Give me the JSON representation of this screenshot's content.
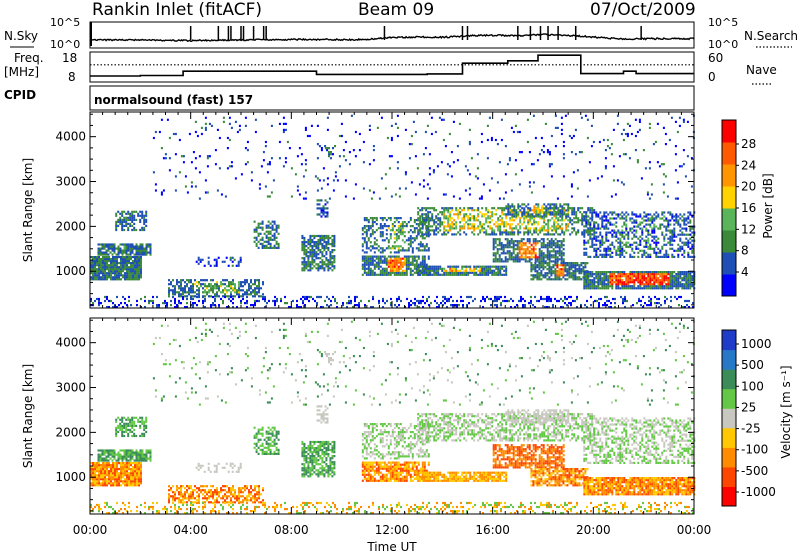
{
  "header": {
    "station": "Rankin Inlet (fitACF)",
    "beam": "Beam 09",
    "date": "07/Oct/2009"
  },
  "strip_labels": {
    "nsky": "N.Sky",
    "nsearch": "N.Search",
    "freq": "Freq.",
    "freq_unit": "[MHz]",
    "cpid": "CPID",
    "nave": "Nave",
    "cpid_value": "normalsound (fast) 157"
  },
  "colors": {
    "power_scale": [
      "#0000ff",
      "#1e4fb4",
      "#3a8a3a",
      "#5ab45a",
      "#ffd200",
      "#ff9600",
      "#ff5a00",
      "#ff0000"
    ],
    "velocity_scale": [
      "#1e3cc8",
      "#2878c8",
      "#3c8c5a",
      "#64c846",
      "#c8c8c0",
      "#ffc800",
      "#ff8c00",
      "#ff4600",
      "#ff0000"
    ]
  },
  "chart_data": [
    {
      "type": "line",
      "name": "N.Sky / N.Search strip",
      "xlabel": "",
      "ylabel_left": "N.Sky",
      "ylabel_right": "N.Search",
      "yticks_left": [
        "10^5",
        "10^0"
      ],
      "yticks_right": [
        "10^5",
        "10^0"
      ],
      "x_hours": [
        0,
        24
      ],
      "baseline_series": [
        [
          0,
          0.5
        ],
        [
          2,
          0.5
        ],
        [
          4,
          0.45
        ],
        [
          6,
          0.5
        ],
        [
          8,
          0.55
        ],
        [
          10,
          0.52
        ],
        [
          11,
          0.55
        ],
        [
          12,
          0.7
        ],
        [
          13,
          0.75
        ],
        [
          14,
          0.72
        ],
        [
          15,
          0.85
        ],
        [
          16,
          0.9
        ],
        [
          17,
          0.85
        ],
        [
          18,
          0.95
        ],
        [
          19,
          0.88
        ],
        [
          20,
          0.75
        ],
        [
          21,
          0.6
        ],
        [
          22,
          0.6
        ],
        [
          23,
          0.62
        ],
        [
          24,
          0.6
        ]
      ],
      "spike_hours": [
        4.0,
        5.1,
        5.5,
        5.6,
        6.0,
        6.1,
        6.5,
        6.9,
        7.0,
        11.7,
        14.8,
        15.0,
        17.0,
        17.5,
        17.9,
        18.2,
        18.6,
        19.3,
        21.9
      ]
    },
    {
      "type": "line",
      "name": "Freq / Nave strip",
      "ylabel_left": "Freq. [MHz]",
      "ylabel_right": "Nave",
      "yticks_left": [
        "18",
        "8"
      ],
      "yticks_right": [
        "60",
        "0"
      ],
      "freq_steps": [
        [
          0,
          2,
          0.25
        ],
        [
          2,
          3.7,
          0.28
        ],
        [
          3.7,
          9,
          0.55
        ],
        [
          9,
          13.4,
          0.35
        ],
        [
          13.4,
          14.8,
          0.38
        ],
        [
          14.8,
          16.6,
          1.05
        ],
        [
          16.6,
          17.8,
          1.2
        ],
        [
          17.8,
          19.5,
          1.55
        ],
        [
          19.5,
          21.2,
          0.4
        ],
        [
          21.2,
          21.7,
          0.55
        ],
        [
          21.7,
          24,
          0.4
        ]
      ],
      "nave_level": 0.95
    },
    {
      "type": "heatmap",
      "name": "Power",
      "xlabel": "",
      "ylabel": "Slant Range [km]",
      "xlim_hours": [
        0,
        24
      ],
      "ylim_km": [
        180,
        4550
      ],
      "yticks": [
        1000,
        2000,
        3000,
        4000
      ],
      "colorbar_label": "Power [dB]",
      "colorbar_ticks": [
        "28",
        "24",
        "20",
        "16",
        "12",
        "8",
        "4"
      ]
    },
    {
      "type": "heatmap",
      "name": "Velocity",
      "xlabel": "Time UT",
      "ylabel": "Slant Range [km]",
      "xlim_hours": [
        0,
        24
      ],
      "ylim_km": [
        180,
        4550
      ],
      "xticks": [
        "00:00",
        "04:00",
        "08:00",
        "12:00",
        "16:00",
        "20:00",
        "00:00"
      ],
      "yticks": [
        1000,
        2000,
        3000,
        4000
      ],
      "colorbar_label": "Velocity [m s⁻¹]",
      "colorbar_ticks": [
        "1000",
        "500",
        "100",
        "25",
        "-25",
        "-100",
        "-500",
        "-1000"
      ]
    }
  ]
}
